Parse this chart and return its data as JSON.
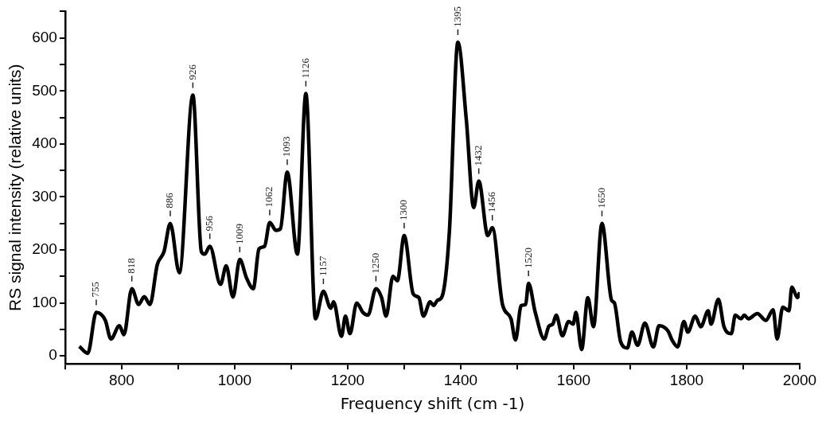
{
  "chart_data": {
    "type": "line",
    "xlabel": "Frequency shift (cm -1)",
    "ylabel": "RS signal intensity (relative units)",
    "color": "#000000",
    "marker": "none",
    "line_style": "solid",
    "legend": false,
    "grid": false,
    "x": [
      725,
      740,
      755,
      771,
      781,
      796,
      804,
      818,
      830,
      840,
      850,
      863,
      875,
      886,
      902,
      926,
      941,
      947,
      956,
      975,
      985,
      997,
      1009,
      1021,
      1033,
      1043,
      1053,
      1062,
      1073,
      1081,
      1093,
      1111,
      1126,
      1143,
      1157,
      1170,
      1175,
      1189,
      1196,
      1204,
      1216,
      1227,
      1236,
      1250,
      1260,
      1268,
      1280,
      1288,
      1300,
      1316,
      1326,
      1334,
      1346,
      1352,
      1359,
      1367,
      1380,
      1395,
      1410,
      1423,
      1432,
      1448,
      1456,
      1474,
      1489,
      1497,
      1507,
      1515,
      1520,
      1532,
      1548,
      1556,
      1563,
      1569,
      1580,
      1591,
      1599,
      1604,
      1614,
      1625,
      1635,
      1650,
      1667,
      1672,
      1683,
      1695,
      1703,
      1713,
      1726,
      1741,
      1751,
      1767,
      1774,
      1784,
      1795,
      1802,
      1815,
      1825,
      1838,
      1843,
      1856,
      1866,
      1879,
      1886,
      1896,
      1902,
      1909,
      1925,
      1940,
      1953,
      1960,
      1970,
      1981,
      1986,
      1996,
      2000
    ],
    "values": [
      18,
      5,
      82,
      67,
      32,
      57,
      40,
      127,
      97,
      112,
      97,
      172,
      197,
      250,
      157,
      492,
      197,
      192,
      207,
      135,
      170,
      111,
      182,
      147,
      127,
      202,
      207,
      252,
      237,
      240,
      347,
      192,
      495,
      70,
      122,
      90,
      102,
      37,
      75,
      42,
      100,
      82,
      77,
      127,
      110,
      75,
      150,
      142,
      227,
      117,
      110,
      75,
      102,
      95,
      105,
      112,
      235,
      592,
      445,
      280,
      330,
      227,
      242,
      97,
      70,
      30,
      95,
      97,
      137,
      82,
      32,
      56,
      60,
      77,
      38,
      65,
      60,
      82,
      12,
      110,
      55,
      250,
      105,
      100,
      27,
      15,
      45,
      20,
      62,
      17,
      57,
      47,
      30,
      17,
      65,
      45,
      75,
      55,
      85,
      60,
      107,
      55,
      42,
      77,
      70,
      77,
      70,
      80,
      67,
      87,
      32,
      92,
      85,
      130,
      110,
      120
    ],
    "xlim": [
      700,
      2000
    ],
    "xticks": [
      {
        "value": 700,
        "label": null
      },
      800,
      {
        "value": 900,
        "label": null
      },
      1000,
      {
        "value": 1100,
        "label": null
      },
      1200,
      {
        "value": 1300,
        "label": null
      },
      1400,
      {
        "value": 1500,
        "label": null
      },
      1600,
      {
        "value": 1700,
        "label": null
      },
      1800,
      {
        "value": 1900,
        "label": null
      },
      2000
    ],
    "ylim": [
      -15,
      650
    ],
    "yticks": [
      0,
      {
        "value": 50,
        "label": null
      },
      100,
      {
        "value": 150,
        "label": null
      },
      200,
      {
        "value": 250,
        "label": null
      },
      300,
      {
        "value": 350,
        "label": null
      },
      400,
      {
        "value": 450,
        "label": null
      },
      500,
      {
        "value": 550,
        "label": null
      },
      600,
      {
        "value": 650,
        "label": null
      }
    ],
    "annotations": [
      {
        "text": "755",
        "x": 755,
        "y": 82
      },
      {
        "text": "818",
        "x": 818,
        "y": 127
      },
      {
        "text": "886",
        "x": 886,
        "y": 250
      },
      {
        "text": "926",
        "x": 926,
        "y": 492
      },
      {
        "text": "956",
        "x": 956,
        "y": 207
      },
      {
        "text": "1009",
        "x": 1009,
        "y": 182
      },
      {
        "text": "1062",
        "x": 1062,
        "y": 252
      },
      {
        "text": "1093",
        "x": 1093,
        "y": 347
      },
      {
        "text": "1126",
        "x": 1126,
        "y": 495
      },
      {
        "text": "1157",
        "x": 1157,
        "y": 122
      },
      {
        "text": "1250",
        "x": 1250,
        "y": 127
      },
      {
        "text": "1300",
        "x": 1300,
        "y": 227
      },
      {
        "text": "1395",
        "x": 1395,
        "y": 592
      },
      {
        "text": "1432",
        "x": 1432,
        "y": 330
      },
      {
        "text": "1456",
        "x": 1456,
        "y": 242
      },
      {
        "text": "1520",
        "x": 1520,
        "y": 137
      },
      {
        "text": "1650",
        "x": 1650,
        "y": 250
      }
    ]
  }
}
